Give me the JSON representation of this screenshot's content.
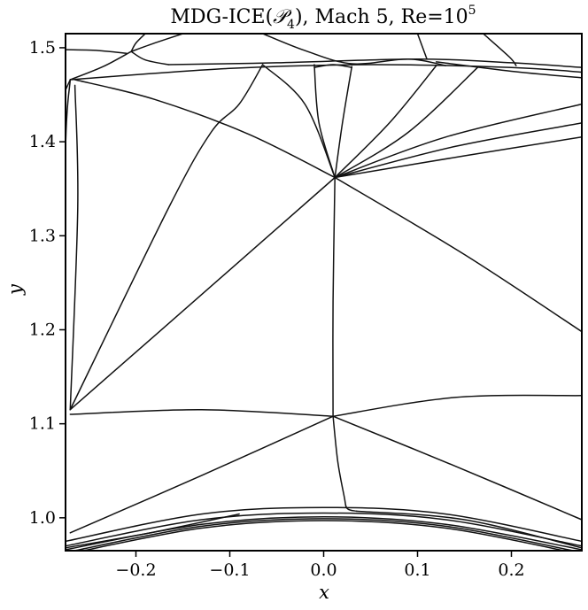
{
  "chart_data": {
    "type": "line",
    "title": "MDG-ICE(𝒫4), Mach 5, Re=10⁵",
    "title_parts": {
      "method": "MDG-ICE(",
      "script": "𝒫",
      "sub": "4",
      "rest": "), Mach 5, Re=10",
      "sup": "5"
    },
    "xlabel": "x",
    "ylabel": "y",
    "xlim": [
      -0.275,
      0.275
    ],
    "ylim": [
      0.965,
      1.515
    ],
    "xticks": [
      -0.2,
      -0.1,
      0.0,
      0.1,
      0.2
    ],
    "xtick_labels": [
      "−0.2",
      "−0.1",
      "0.0",
      "0.1",
      "0.2"
    ],
    "yticks": [
      1.0,
      1.1,
      1.2,
      1.3,
      1.4,
      1.5
    ],
    "ytick_labels": [
      "1.0",
      "1.1",
      "1.2",
      "1.3",
      "1.4",
      "1.5"
    ],
    "grid": false,
    "line_color": "#111111",
    "series": [
      {
        "values": [
          [
            -0.275,
            1.498
          ],
          [
            -0.24,
            1.497
          ],
          [
            -0.21,
            1.494
          ]
        ]
      },
      {
        "values": [
          [
            -0.27,
            1.466
          ],
          [
            -0.235,
            1.48
          ],
          [
            -0.205,
            1.496
          ]
        ]
      },
      {
        "values": [
          [
            -0.205,
            1.496
          ],
          [
            -0.19,
            1.487
          ],
          [
            -0.165,
            1.482
          ]
        ]
      },
      {
        "values": [
          [
            -0.205,
            1.496
          ],
          [
            -0.2,
            1.505
          ],
          [
            -0.19,
            1.515
          ]
        ]
      },
      {
        "values": [
          [
            -0.15,
            1.515
          ],
          [
            -0.18,
            1.505
          ],
          [
            -0.205,
            1.496
          ]
        ]
      },
      {
        "values": [
          [
            -0.27,
            1.466
          ],
          [
            -0.1,
            1.478
          ],
          [
            0.05,
            1.482
          ],
          [
            0.2,
            1.479
          ],
          [
            0.275,
            1.474
          ]
        ]
      },
      {
        "values": [
          [
            -0.165,
            1.482
          ],
          [
            -0.05,
            1.484
          ],
          [
            0.1,
            1.488
          ],
          [
            0.2,
            1.484
          ],
          [
            0.275,
            1.479
          ]
        ]
      },
      {
        "values": [
          [
            -0.065,
            1.515
          ],
          [
            -0.02,
            1.497
          ],
          [
            0.03,
            1.483
          ],
          [
            0.09,
            1.488
          ],
          [
            0.13,
            1.481
          ]
        ]
      },
      {
        "values": [
          [
            0.1,
            1.515
          ],
          [
            0.11,
            1.488
          ]
        ]
      },
      {
        "values": [
          [
            0.17,
            1.515
          ],
          [
            0.198,
            1.49
          ],
          [
            0.205,
            1.481
          ]
        ]
      },
      {
        "values": [
          [
            -0.01,
            1.479
          ],
          [
            0.01,
            1.482
          ],
          [
            0.03,
            1.479
          ]
        ]
      },
      {
        "values": [
          [
            0.12,
            1.485
          ],
          [
            0.2,
            1.475
          ],
          [
            0.275,
            1.468
          ]
        ]
      },
      {
        "values": [
          [
            -0.275,
            1.455
          ],
          [
            -0.27,
            1.466
          ]
        ]
      },
      {
        "values": [
          [
            -0.27,
            1.466
          ],
          [
            -0.275,
            1.39
          ],
          [
            -0.275,
            1.15
          ]
        ]
      },
      {
        "values": [
          [
            -0.265,
            1.46
          ],
          [
            -0.262,
            1.33
          ],
          [
            -0.27,
            1.115
          ]
        ]
      },
      {
        "values": [
          [
            -0.265,
            1.466
          ],
          [
            -0.18,
            1.445
          ],
          [
            -0.08,
            1.408
          ],
          [
            0.012,
            1.362
          ]
        ]
      },
      {
        "values": [
          [
            -0.065,
            1.482
          ],
          [
            -0.02,
            1.44
          ],
          [
            0.012,
            1.362
          ]
        ]
      },
      {
        "values": [
          [
            -0.065,
            1.482
          ],
          [
            -0.09,
            1.44
          ],
          [
            -0.12,
            1.41
          ],
          [
            -0.165,
            1.33
          ],
          [
            -0.27,
            1.115
          ]
        ]
      },
      {
        "values": [
          [
            -0.01,
            1.482
          ],
          [
            -0.005,
            1.42
          ],
          [
            0.012,
            1.362
          ]
        ]
      },
      {
        "values": [
          [
            0.03,
            1.48
          ],
          [
            0.02,
            1.42
          ],
          [
            0.012,
            1.362
          ]
        ]
      },
      {
        "values": [
          [
            0.12,
            1.481
          ],
          [
            0.07,
            1.42
          ],
          [
            0.012,
            1.362
          ]
        ]
      },
      {
        "values": [
          [
            0.165,
            1.48
          ],
          [
            0.09,
            1.41
          ],
          [
            0.012,
            1.362
          ]
        ]
      },
      {
        "values": [
          [
            0.012,
            1.362
          ],
          [
            0.13,
            1.405
          ],
          [
            0.275,
            1.44
          ]
        ]
      },
      {
        "values": [
          [
            0.012,
            1.362
          ],
          [
            0.14,
            1.395
          ],
          [
            0.275,
            1.42
          ]
        ]
      },
      {
        "values": [
          [
            0.012,
            1.362
          ],
          [
            0.15,
            1.385
          ],
          [
            0.275,
            1.405
          ]
        ]
      },
      {
        "values": [
          [
            0.012,
            1.362
          ],
          [
            -0.11,
            1.255
          ],
          [
            -0.27,
            1.115
          ]
        ]
      },
      {
        "values": [
          [
            0.012,
            1.362
          ],
          [
            0.15,
            1.28
          ],
          [
            0.275,
            1.198
          ]
        ]
      },
      {
        "values": [
          [
            0.012,
            1.362
          ],
          [
            0.01,
            1.23
          ],
          [
            0.01,
            1.108
          ]
        ]
      },
      {
        "values": [
          [
            -0.27,
            1.11
          ],
          [
            -0.13,
            1.115
          ],
          [
            0.01,
            1.108
          ]
        ]
      },
      {
        "values": [
          [
            0.01,
            1.108
          ],
          [
            0.14,
            1.128
          ],
          [
            0.275,
            1.13
          ]
        ]
      },
      {
        "values": [
          [
            -0.27,
            0.984
          ],
          [
            -0.13,
            1.045
          ],
          [
            0.01,
            1.108
          ]
        ]
      },
      {
        "values": [
          [
            0.01,
            1.108
          ],
          [
            0.14,
            1.055
          ],
          [
            0.275,
            0.998
          ]
        ]
      },
      {
        "values": [
          [
            0.01,
            1.108
          ],
          [
            0.015,
            1.06
          ],
          [
            0.022,
            1.022
          ],
          [
            0.025,
            1.01
          ],
          [
            0.035,
            1.007
          ]
        ]
      },
      {
        "values": [
          [
            -0.275,
            0.975
          ],
          [
            -0.13,
            1.004
          ],
          [
            0.0,
            1.011
          ],
          [
            0.13,
            1.004
          ],
          [
            0.275,
            0.975
          ]
        ]
      },
      {
        "values": [
          [
            -0.275,
            0.97
          ],
          [
            -0.13,
            0.998
          ],
          [
            0.0,
            1.005
          ],
          [
            0.13,
            0.998
          ],
          [
            0.275,
            0.97
          ]
        ]
      },
      {
        "values": [
          [
            -0.275,
            0.966
          ],
          [
            -0.13,
            0.993
          ],
          [
            0.0,
            1.001
          ],
          [
            0.13,
            0.993
          ],
          [
            0.275,
            0.966
          ]
        ]
      },
      {
        "values": [
          [
            -0.275,
            0.963
          ],
          [
            -0.13,
            0.991
          ],
          [
            0.0,
            0.999
          ],
          [
            0.13,
            0.991
          ],
          [
            0.275,
            0.963
          ]
        ]
      },
      {
        "values": [
          [
            -0.275,
            0.961
          ],
          [
            -0.13,
            0.989
          ],
          [
            0.0,
            0.997
          ],
          [
            0.13,
            0.989
          ],
          [
            0.275,
            0.961
          ]
        ]
      },
      {
        "values": [
          [
            0.035,
            1.007
          ],
          [
            0.15,
            0.998
          ],
          [
            0.275,
            0.968
          ]
        ]
      },
      {
        "values": [
          [
            -0.09,
            1.004
          ],
          [
            -0.18,
            0.985
          ],
          [
            -0.275,
            0.968
          ]
        ]
      }
    ]
  }
}
